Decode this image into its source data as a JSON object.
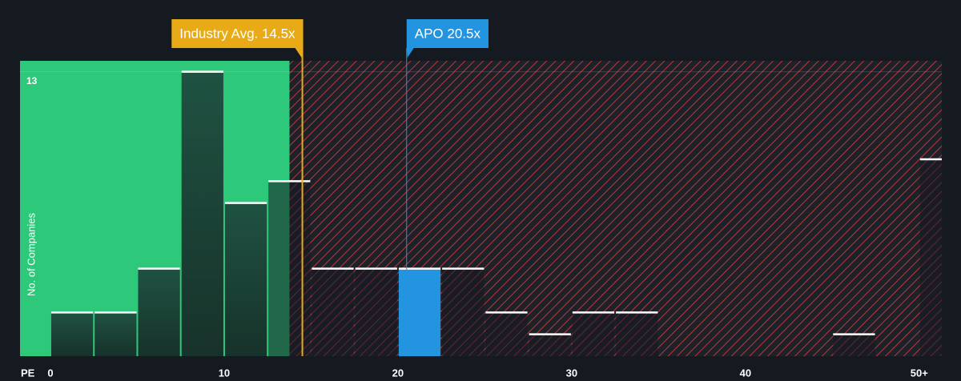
{
  "chart_data": {
    "type": "histogram",
    "xlabel": "PE",
    "ylabel": "No. of Companies",
    "bins": [
      0,
      2.5,
      5,
      7.5,
      10,
      12.5,
      15,
      17.5,
      20,
      22.5,
      25,
      27.5,
      30,
      32.5,
      35,
      37.5,
      40,
      42.5,
      45,
      47.5,
      50,
      52.5
    ],
    "counts": [
      2,
      2,
      4,
      13,
      7,
      8,
      4,
      4,
      4,
      4,
      2,
      1,
      2,
      2,
      0,
      0,
      0,
      0,
      1,
      0,
      9
    ],
    "xlim": [
      -1.75,
      51.3
    ],
    "ylim": [
      0,
      13.5
    ],
    "xticks": [
      0,
      10,
      20,
      30,
      40,
      {
        "value": 50,
        "label": "50+"
      }
    ],
    "yticks": [
      13
    ],
    "annotations": [
      {
        "label": "Industry Avg. 14.5x",
        "value": 14.5,
        "color": "#e8ab17"
      },
      {
        "label": "APO 20.5x",
        "value": 20.5,
        "color": "#2394e0"
      }
    ]
  }
}
